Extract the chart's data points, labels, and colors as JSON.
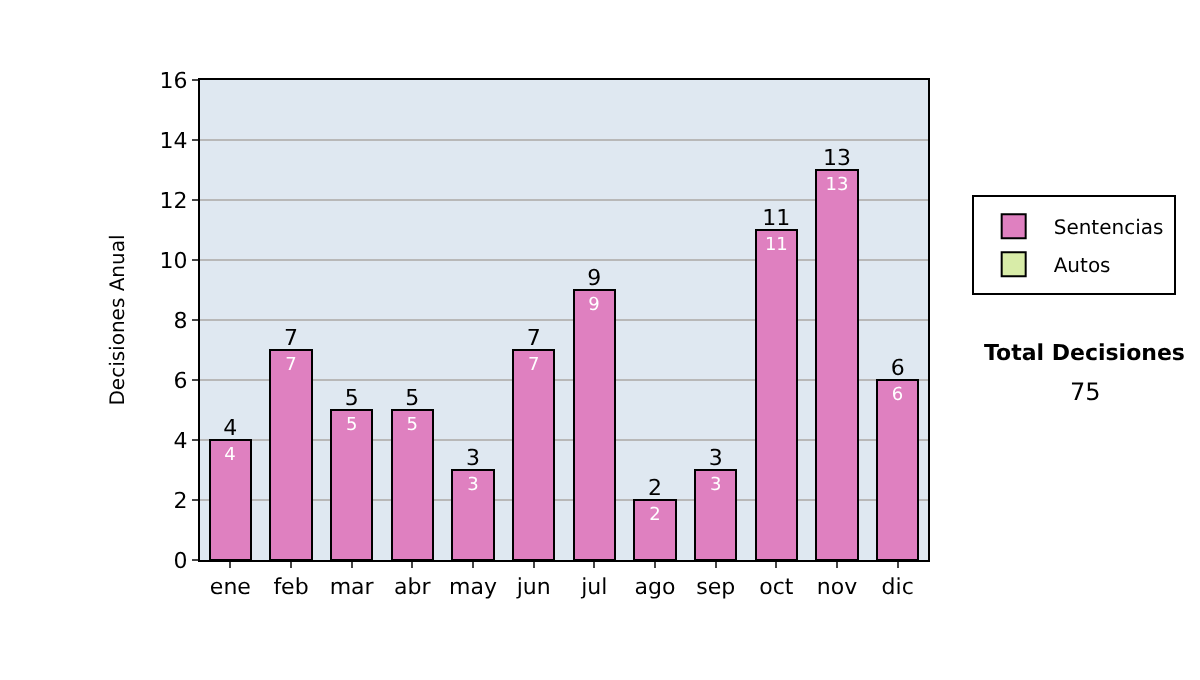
{
  "chart_data": {
    "type": "bar",
    "ylabel": "Decisiones Anual",
    "categories": [
      "ene",
      "feb",
      "mar",
      "abr",
      "may",
      "jun",
      "jul",
      "ago",
      "sep",
      "oct",
      "nov",
      "dic"
    ],
    "stacked": true,
    "series": [
      {
        "name": "Sentencias",
        "color": "#df80c0",
        "values": [
          4,
          7,
          5,
          5,
          3,
          7,
          9,
          2,
          3,
          11,
          13,
          6
        ]
      },
      {
        "name": "Autos",
        "color": "#d8eca8",
        "values": [
          null,
          null,
          null,
          null,
          null,
          null,
          null,
          null,
          null,
          null,
          null,
          null
        ]
      }
    ],
    "totals": [
      "4",
      "7",
      "5",
      "5",
      "3",
      "7",
      "9",
      "2",
      "3",
      "11",
      "13",
      "6"
    ],
    "ylim": [
      0,
      16
    ],
    "yticks": [
      0,
      2,
      4,
      6,
      8,
      10,
      12,
      14,
      16
    ],
    "grid": "y",
    "legend": "right",
    "data_labels": true,
    "annotations": [
      "Total Decisiones",
      "75"
    ]
  }
}
